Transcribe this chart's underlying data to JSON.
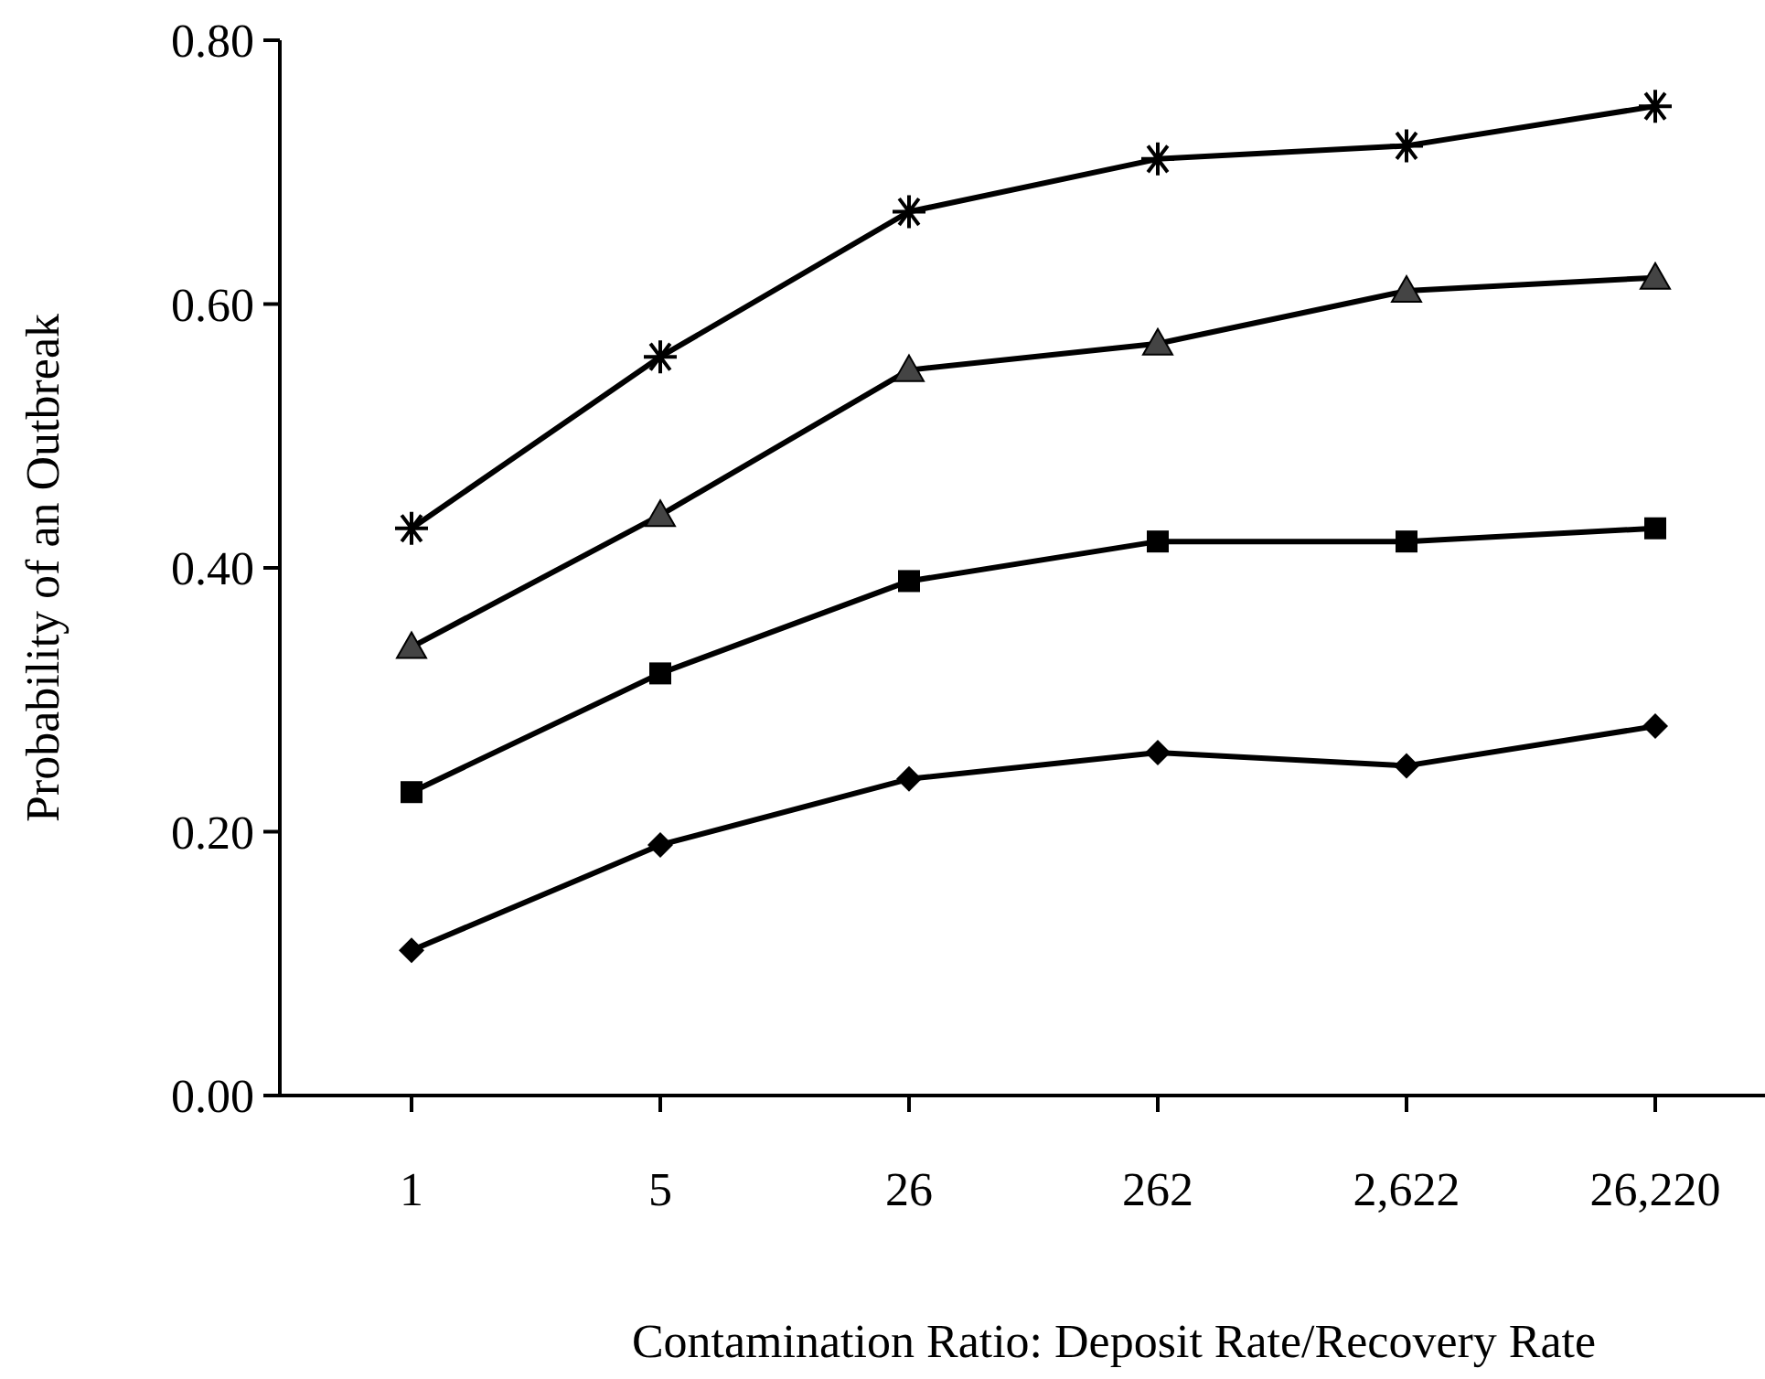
{
  "chart_data": {
    "type": "line",
    "xlabel": "Contamination Ratio: Deposit Rate/Recovery Rate",
    "ylabel": "Probability of an Outbreak",
    "categories": [
      "1",
      "5",
      "26",
      "262",
      "2,622",
      "26,220"
    ],
    "series": [
      {
        "color": "#000000",
        "marker": "diamond",
        "values": [
          0.11,
          0.19,
          0.24,
          0.26,
          0.25,
          0.28
        ]
      },
      {
        "color": "#000000",
        "marker": "square",
        "values": [
          0.23,
          0.32,
          0.39,
          0.42,
          0.42,
          0.43
        ]
      },
      {
        "color": "#000000",
        "marker": "triangle",
        "values": [
          0.34,
          0.44,
          0.55,
          0.57,
          0.61,
          0.62
        ]
      },
      {
        "color": "#000000",
        "marker": "cross",
        "values": [
          0.43,
          0.56,
          0.67,
          0.71,
          0.72,
          0.75
        ]
      }
    ],
    "ylim": [
      0,
      0.8
    ],
    "yticks": [
      {
        "value": 0,
        "label": "0.00"
      },
      {
        "value": 0.2,
        "label": "0.20"
      },
      {
        "value": 0.4,
        "label": "0.40"
      },
      {
        "value": 0.6,
        "label": "0.60"
      },
      {
        "value": 0.8,
        "label": "0.80"
      }
    ],
    "grid": false,
    "line_style": "solid"
  }
}
